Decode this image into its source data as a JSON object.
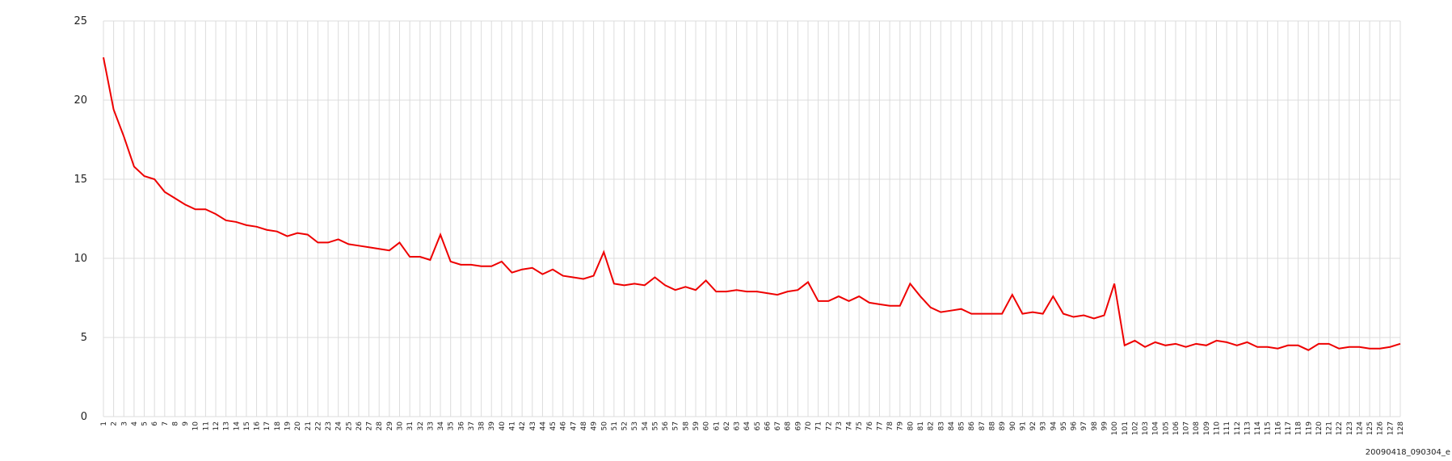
{
  "chart_data": {
    "type": "line",
    "categories": [
      "1",
      "2",
      "3",
      "4",
      "5",
      "6",
      "7",
      "8",
      "9",
      "10",
      "11",
      "12",
      "13",
      "14",
      "15",
      "16",
      "17",
      "18",
      "19",
      "20",
      "21",
      "22",
      "23",
      "24",
      "25",
      "26",
      "27",
      "28",
      "29",
      "30",
      "31",
      "32",
      "33",
      "34",
      "35",
      "36",
      "37",
      "38",
      "39",
      "40",
      "41",
      "42",
      "43",
      "44",
      "45",
      "46",
      "47",
      "48",
      "49",
      "50",
      "51",
      "52",
      "53",
      "54",
      "55",
      "56",
      "57",
      "58",
      "59",
      "60",
      "61",
      "62",
      "63",
      "64",
      "65",
      "66",
      "67",
      "68",
      "69",
      "70",
      "71",
      "72",
      "73",
      "74",
      "75",
      "76",
      "77",
      "78",
      "79",
      "80",
      "81",
      "82",
      "83",
      "84",
      "85",
      "86",
      "87",
      "88",
      "89",
      "90",
      "91",
      "92",
      "93",
      "94",
      "95",
      "96",
      "97",
      "98",
      "99",
      "100",
      "101",
      "102",
      "103",
      "104",
      "105",
      "106",
      "107",
      "108",
      "109",
      "110",
      "111",
      "112",
      "113",
      "114",
      "115",
      "116",
      "117",
      "118",
      "119",
      "120",
      "121",
      "122",
      "123",
      "124",
      "125",
      "126",
      "127",
      "128"
    ],
    "series": [
      {
        "color": "#ee0000",
        "values": [
          22.7,
          19.4,
          17.7,
          15.8,
          15.2,
          15.0,
          14.2,
          13.8,
          13.4,
          13.1,
          13.1,
          12.8,
          12.4,
          12.3,
          12.1,
          12.0,
          11.8,
          11.7,
          11.4,
          11.6,
          11.5,
          11.0,
          11.0,
          11.2,
          10.9,
          10.8,
          10.7,
          10.6,
          10.5,
          11.0,
          10.1,
          10.1,
          9.9,
          11.5,
          9.8,
          9.6,
          9.6,
          9.5,
          9.5,
          9.8,
          9.1,
          9.3,
          9.4,
          9.0,
          9.3,
          8.9,
          8.8,
          8.7,
          8.9,
          10.4,
          8.4,
          8.3,
          8.4,
          8.3,
          8.8,
          8.3,
          8.0,
          8.2,
          8.0,
          8.6,
          7.9,
          7.9,
          8.0,
          7.9,
          7.9,
          7.8,
          7.7,
          7.9,
          8.0,
          8.5,
          7.3,
          7.3,
          7.6,
          7.3,
          7.6,
          7.2,
          7.1,
          7.0,
          7.0,
          8.4,
          7.6,
          6.9,
          6.6,
          6.7,
          6.8,
          6.5,
          6.5,
          6.5,
          6.5,
          7.7,
          6.5,
          6.6,
          6.5,
          7.6,
          6.5,
          6.3,
          6.4,
          6.2,
          6.4,
          8.4,
          4.5,
          4.8,
          4.4,
          4.7,
          4.5,
          4.6,
          4.4,
          4.6,
          4.5,
          4.8,
          4.7,
          4.5,
          4.7,
          4.4,
          4.4,
          4.3,
          4.5,
          4.5,
          4.2,
          4.6,
          4.6,
          4.3,
          4.4,
          4.4,
          4.3,
          4.3,
          4.4,
          4.6
        ]
      }
    ],
    "ylim": [
      0,
      25
    ],
    "yticks": [
      0,
      5,
      10,
      15,
      20,
      25
    ],
    "grid": true,
    "footer_label": "20090418_090304_e"
  }
}
